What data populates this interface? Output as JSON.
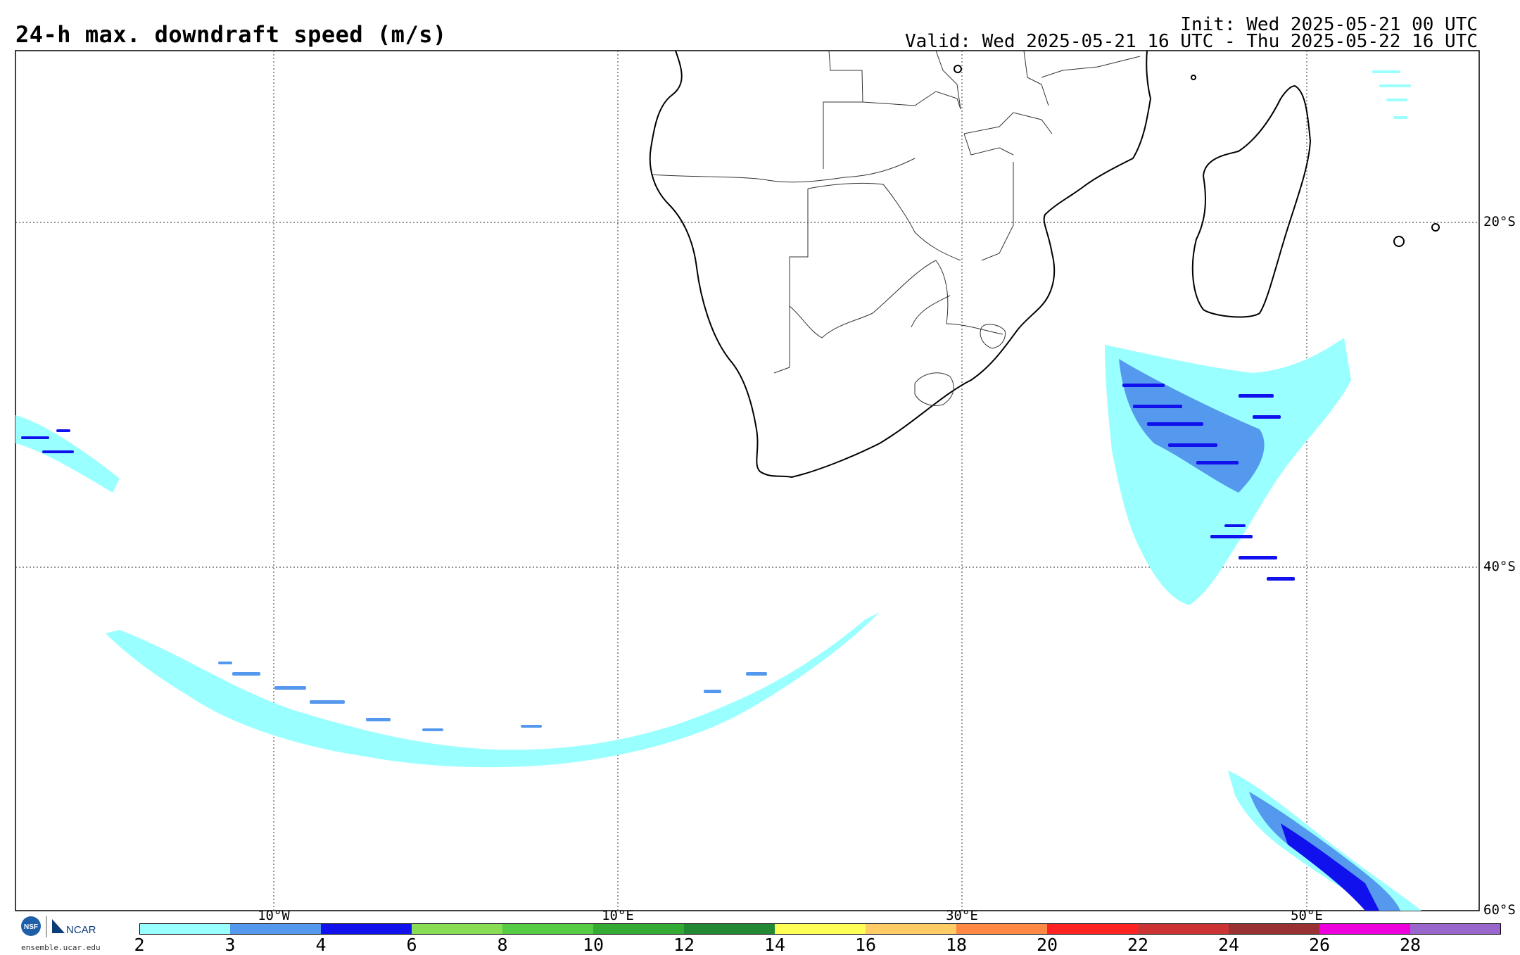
{
  "header": {
    "title": "24-h max. downdraft speed (m/s)",
    "init": "Init: Wed 2025-05-21 00 UTC",
    "valid": "Valid: Wed 2025-05-21 16 UTC - Thu 2025-05-22 16 UTC"
  },
  "map": {
    "lat_labels": [
      "20°S",
      "40°S",
      "60°S"
    ],
    "lon_labels": [
      "10°W",
      "10°E",
      "30°E",
      "50°E"
    ],
    "grid_style": "dotted",
    "region": "Southern Africa and South Atlantic / Indian Ocean"
  },
  "colorbar": {
    "ticks": [
      "2",
      "3",
      "4",
      "6",
      "8",
      "10",
      "12",
      "14",
      "16",
      "18",
      "20",
      "22",
      "24",
      "26",
      "28"
    ],
    "colors": [
      "#99ffff",
      "#5599ee",
      "#1111ee",
      "#88dd55",
      "#55cc44",
      "#33aa33",
      "#228833",
      "#ffff55",
      "#ffcc66",
      "#ff8844",
      "#ff2222",
      "#cc3333",
      "#993333",
      "#ee00dd",
      "#9966cc"
    ]
  },
  "logo": {
    "org_left": "NSF",
    "org_right": "NCAR",
    "site": "ensemble.ucar.edu"
  }
}
